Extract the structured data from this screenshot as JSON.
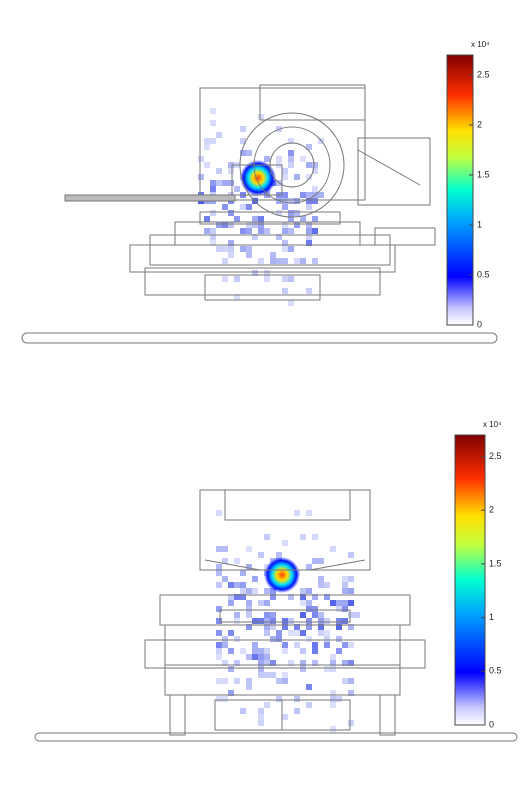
{
  "panels": [
    {
      "colorbar": {
        "label": "x 10⁴",
        "clim": [
          0,
          2.7
        ],
        "ticks": [
          0,
          0.5,
          1,
          1.5,
          2,
          2.5
        ]
      }
    },
    {
      "colorbar": {
        "label": "x 10⁴",
        "clim": [
          0,
          2.7
        ],
        "ticks": [
          0,
          0.5,
          1,
          1.5,
          2,
          2.5
        ]
      }
    }
  ]
}
